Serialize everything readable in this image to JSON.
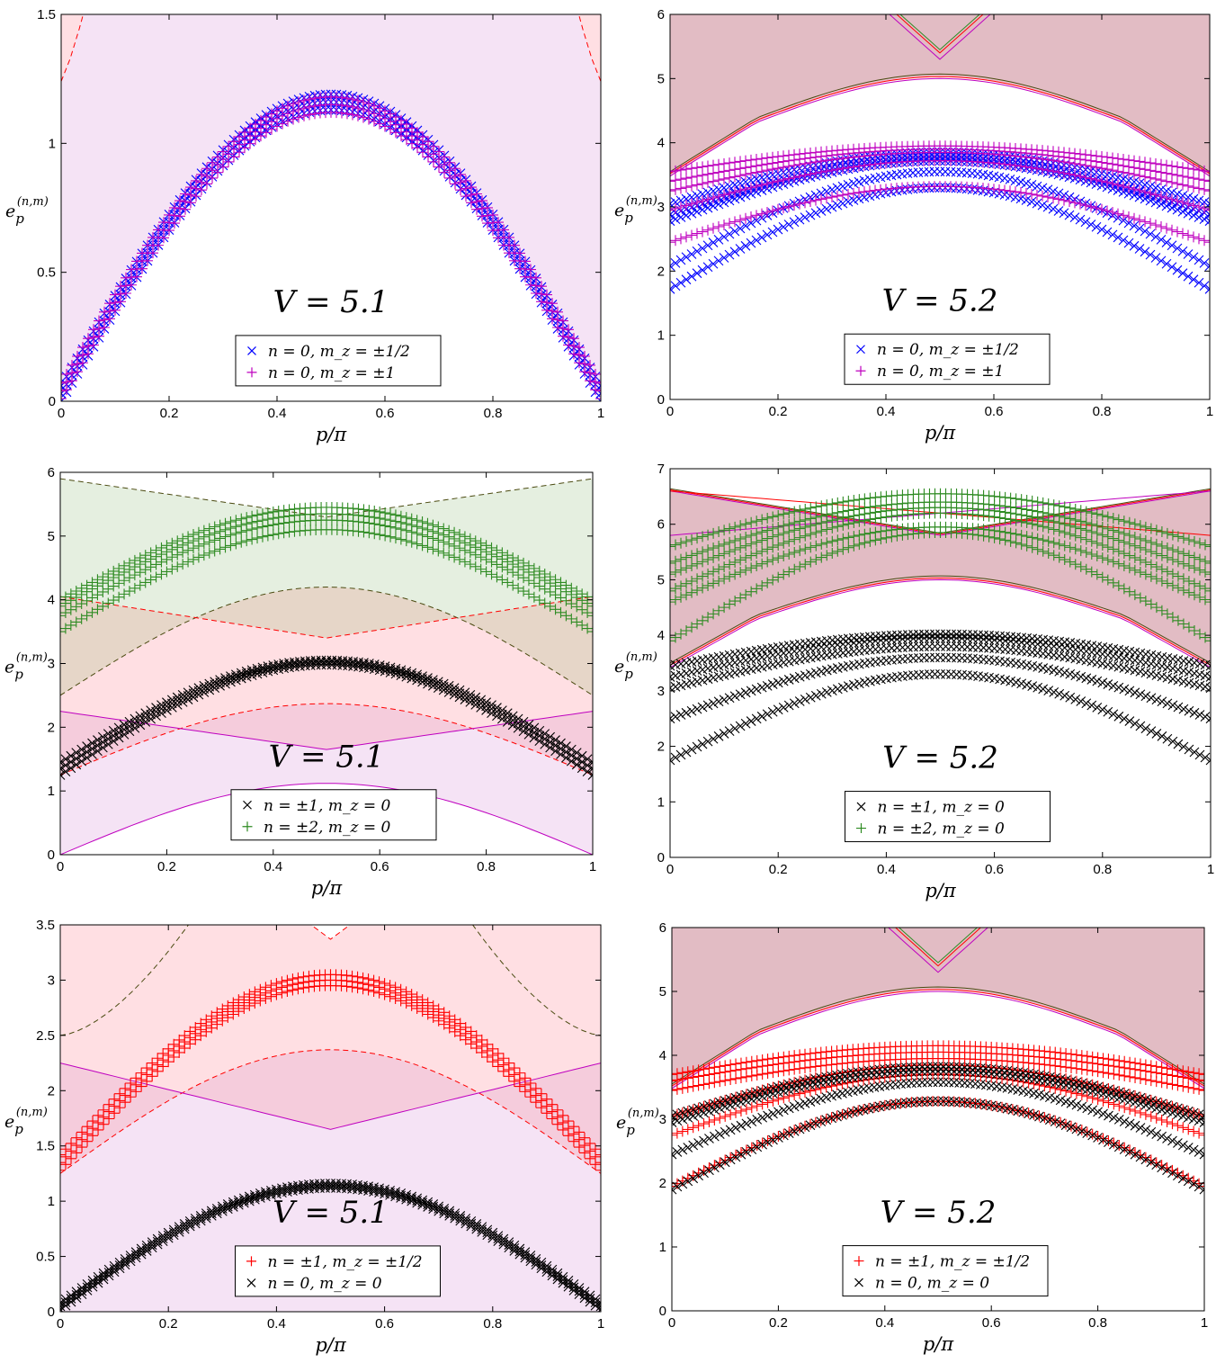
{
  "figure": {
    "xlabel": "p/π",
    "ylabel_main": "e",
    "ylabel_sub": "p",
    "ylabel_sup": "(n,m)",
    "colors": {
      "blue": "#0000ff",
      "magenta": "#bf00bf",
      "red": "#ff0000",
      "green": "#2e8b22",
      "black": "#000000",
      "darkgreen": "#4a4a10",
      "fill_violet": "#f5e3f5",
      "fill_pink": "#ffdfe3",
      "fill_green": "#e5efe0",
      "fill_mauve": "#e2bcc4"
    }
  },
  "chart_data": [
    {
      "type": "scatter",
      "panel": "top-left",
      "annotation": "V = 5.1",
      "xlim": [
        0,
        1
      ],
      "ylim": [
        0,
        1.5
      ],
      "xticks": [
        "0",
        "0.2",
        "0.4",
        "0.6",
        "0.8",
        "1"
      ],
      "yticks": [
        "0",
        "0.5",
        "1",
        "1.5"
      ],
      "ytick_values": [
        0,
        0.5,
        1,
        1.5
      ],
      "legend": {
        "placement": "bottom-center",
        "entries": [
          {
            "label": "n = 0, m_z = ±1/2",
            "marker": "x",
            "color": "#0000ff"
          },
          {
            "label": "n = 0, m_z = ±1",
            "marker": "+",
            "color": "#bf00bf"
          }
        ]
      },
      "series": [
        {
          "marker": "x",
          "color": "#0000ff",
          "shape": "arch",
          "base": 0.03,
          "peak": 1.16,
          "count": 3,
          "spread": 0.03
        },
        {
          "marker": "+",
          "color": "#bf00bf",
          "shape": "arch",
          "base": 0.04,
          "peak": 1.15,
          "count": 3,
          "spread": 0.03
        }
      ],
      "continuum_bands": [
        {
          "kind": "band",
          "lower_edge": "arch 0 to 1.16",
          "upper": 1.5,
          "fill": "#f5e3f5"
        },
        {
          "kind": "corner",
          "edge": "dashed red from 1.24 at p=0 to 1.5 at p=0.08",
          "fill": "#ffdfe3"
        }
      ]
    },
    {
      "type": "scatter",
      "panel": "top-right",
      "annotation": "V = 5.2",
      "xlim": [
        0,
        1
      ],
      "ylim": [
        0,
        6
      ],
      "xticks": [
        "0",
        "0.2",
        "0.4",
        "0.6",
        "0.8",
        "1"
      ],
      "yticks": [
        "0",
        "1",
        "2",
        "3",
        "4",
        "5",
        "6"
      ],
      "ytick_values": [
        0,
        1,
        2,
        3,
        4,
        5,
        6
      ],
      "legend": {
        "placement": "bottom-center",
        "entries": [
          {
            "label": "n = 0, m_z = ±1/2",
            "marker": "x",
            "color": "#0000ff"
          },
          {
            "label": "n = 0, m_z = ±1",
            "marker": "+",
            "color": "#bf00bf"
          }
        ]
      },
      "series": [
        {
          "marker": "x",
          "color": "#0000ff",
          "branches": [
            [
              1.72,
              3.3
            ],
            [
              2.08,
              3.55
            ],
            [
              2.78,
              3.72
            ],
            [
              2.88,
              3.78
            ],
            [
              3.05,
              3.85
            ]
          ]
        },
        {
          "marker": "+",
          "color": "#bf00bf",
          "branches": [
            [
              2.45,
              3.32
            ],
            [
              2.95,
              3.72
            ],
            [
              3.25,
              3.85
            ],
            [
              3.4,
              3.9
            ],
            [
              3.55,
              3.95
            ]
          ]
        }
      ],
      "continuum_bands": [
        {
          "kind": "band",
          "lower_edge": "kinked arch 3.55 at p=0 to 5.05 at p=0.5",
          "upper": 6,
          "fill": "#e2bcc4"
        }
      ]
    },
    {
      "type": "scatter",
      "panel": "middle-left",
      "annotation": "V = 5.1",
      "xlim": [
        0,
        1
      ],
      "ylim": [
        0,
        6
      ],
      "xticks": [
        "0",
        "0.2",
        "0.4",
        "0.6",
        "0.8",
        "1"
      ],
      "yticks": [
        "0",
        "1",
        "2",
        "3",
        "4",
        "5",
        "6"
      ],
      "ytick_values": [
        0,
        1,
        2,
        3,
        4,
        5,
        6
      ],
      "legend": {
        "placement": "bottom-center",
        "entries": [
          {
            "label": "n = ±1, m_z = 0",
            "marker": "x",
            "color": "#000000"
          },
          {
            "label": "n = ±2, m_z = 0",
            "marker": "+",
            "color": "#2e8b22"
          }
        ]
      },
      "series": [
        {
          "marker": "x",
          "color": "#000000",
          "branches": [
            [
              1.25,
              2.98
            ],
            [
              1.35,
              3.02
            ],
            [
              1.45,
              3.05
            ]
          ]
        },
        {
          "marker": "+",
          "color": "#2e8b22",
          "branches": [
            [
              3.5,
              5.1
            ],
            [
              3.75,
              5.25
            ],
            [
              3.9,
              5.35
            ],
            [
              4.0,
              5.45
            ]
          ]
        }
      ],
      "continuum_bands": [
        {
          "kind": "band",
          "edges": "green dashed 2.5 to 4.2 (lower), 5.9 to 5.3 (upper)",
          "fill": "#e5efe0"
        },
        {
          "kind": "band",
          "edges": "red dashed 1.25 to 2.37 (lower), 4.05 to 3.4 (upper)",
          "fill": "#ffdfe3"
        },
        {
          "kind": "band",
          "edges": "magenta 0 to 1.12 (lower), 2.25 to 1.65 (upper)",
          "fill": "#f5e3f5"
        }
      ]
    },
    {
      "type": "scatter",
      "panel": "middle-right",
      "annotation": "V = 5.2",
      "xlim": [
        0,
        1
      ],
      "ylim": [
        0,
        7
      ],
      "xticks": [
        "0",
        "0.2",
        "0.4",
        "0.6",
        "0.8",
        "1"
      ],
      "yticks": [
        "0",
        "1",
        "2",
        "3",
        "4",
        "5",
        "6",
        "7"
      ],
      "ytick_values": [
        0,
        1,
        2,
        3,
        4,
        5,
        6,
        7
      ],
      "legend": {
        "placement": "bottom-center",
        "entries": [
          {
            "label": "n = ±1, m_z = 0",
            "marker": "x",
            "color": "#000000"
          },
          {
            "label": "n = ±2, m_z = 0",
            "marker": "+",
            "color": "#2e8b22"
          }
        ]
      },
      "series": [
        {
          "marker": "x",
          "color": "#000000",
          "branches": [
            [
              1.75,
              3.3
            ],
            [
              2.5,
              3.6
            ],
            [
              3.05,
              3.8
            ],
            [
              3.25,
              3.95
            ],
            [
              3.45,
              4.02
            ]
          ]
        },
        {
          "marker": "+",
          "color": "#2e8b22",
          "branches": [
            [
              3.9,
              5.85
            ],
            [
              4.6,
              5.95
            ],
            [
              4.8,
              6.2
            ],
            [
              5.1,
              6.3
            ],
            [
              5.3,
              6.4
            ],
            [
              5.6,
              6.55
            ]
          ]
        }
      ],
      "continuum_bands": [
        {
          "kind": "band",
          "lower_edge": "kinked arch 3.5 at p=0 to 5.05 at p=0.5",
          "upper_edge": "6.6 at p=0 to 5.8 at p=0.5",
          "fill": "#e2bcc4"
        }
      ]
    },
    {
      "type": "scatter",
      "panel": "bottom-left",
      "annotation": "V = 5.1",
      "xlim": [
        0,
        1
      ],
      "ylim": [
        0,
        3.5
      ],
      "xticks": [
        "0",
        "0.2",
        "0.4",
        "0.6",
        "0.8",
        "1"
      ],
      "yticks": [
        "0",
        "0.5",
        "1",
        "1.5",
        "2",
        "2.5",
        "3",
        "3.5"
      ],
      "ytick_values": [
        0,
        0.5,
        1,
        1.5,
        2,
        2.5,
        3,
        3.5
      ],
      "legend": {
        "placement": "bottom-center",
        "entries": [
          {
            "label": "n = ±1, m_z = ±1/2",
            "marker": "+",
            "color": "#ff0000"
          },
          {
            "label": "n = 0, m_z = 0",
            "marker": "x",
            "color": "#000000"
          }
        ]
      },
      "series": [
        {
          "marker": "+",
          "color": "#ff0000",
          "branches": [
            [
              1.28,
              2.95
            ],
            [
              1.35,
              3.0
            ],
            [
              1.42,
              3.05
            ]
          ]
        },
        {
          "marker": "x",
          "color": "#000000",
          "branches": [
            [
              0.02,
              1.12
            ],
            [
              0.05,
              1.14
            ],
            [
              0.08,
              1.16
            ]
          ]
        }
      ],
      "continuum_bands": [
        {
          "kind": "band",
          "edges": "green dashed 2.5 rising to 3.5 near p=0.2",
          "fill": "#e8d8d0"
        },
        {
          "kind": "band",
          "edges": "red dashed 1.25 to 2.37 (lower), 3.37 kink at p=0.5 (upper)",
          "fill": "#ffdfe3"
        },
        {
          "kind": "band",
          "edges": "magenta 2.25 to 1.65 (upper)",
          "fill": "#f5e3f5"
        }
      ]
    },
    {
      "type": "scatter",
      "panel": "bottom-right",
      "annotation": "V = 5.2",
      "xlim": [
        0,
        1
      ],
      "ylim": [
        0,
        6
      ],
      "xticks": [
        "0",
        "0.2",
        "0.4",
        "0.6",
        "0.8",
        "1"
      ],
      "yticks": [
        "0",
        "1",
        "2",
        "3",
        "4",
        "5",
        "6"
      ],
      "ytick_values": [
        0,
        1,
        2,
        3,
        4,
        5,
        6
      ],
      "legend": {
        "placement": "bottom-center",
        "entries": [
          {
            "label": "n = ±1, m_z = ±1/2",
            "marker": "+",
            "color": "#ff0000"
          },
          {
            "label": "n = 0, m_z = 0",
            "marker": "x",
            "color": "#000000"
          }
        ]
      },
      "series": [
        {
          "marker": "+",
          "color": "#ff0000",
          "branches": [
            [
              1.95,
              3.28
            ],
            [
              2.75,
              3.7
            ],
            [
              3.05,
              3.85
            ],
            [
              3.45,
              3.95
            ],
            [
              3.6,
              4.05
            ],
            [
              3.7,
              4.15
            ]
          ]
        },
        {
          "marker": "x",
          "color": "#000000",
          "branches": [
            [
              1.9,
              3.28
            ],
            [
              2.45,
              3.58
            ],
            [
              2.95,
              3.75
            ],
            [
              3.05,
              3.82
            ]
          ]
        }
      ],
      "continuum_bands": [
        {
          "kind": "band",
          "lower_edge": "kinked arch 3.5 at p=0 to 5.05 at p=0.5",
          "upper": 6,
          "fill": "#e2bcc4"
        }
      ]
    }
  ]
}
